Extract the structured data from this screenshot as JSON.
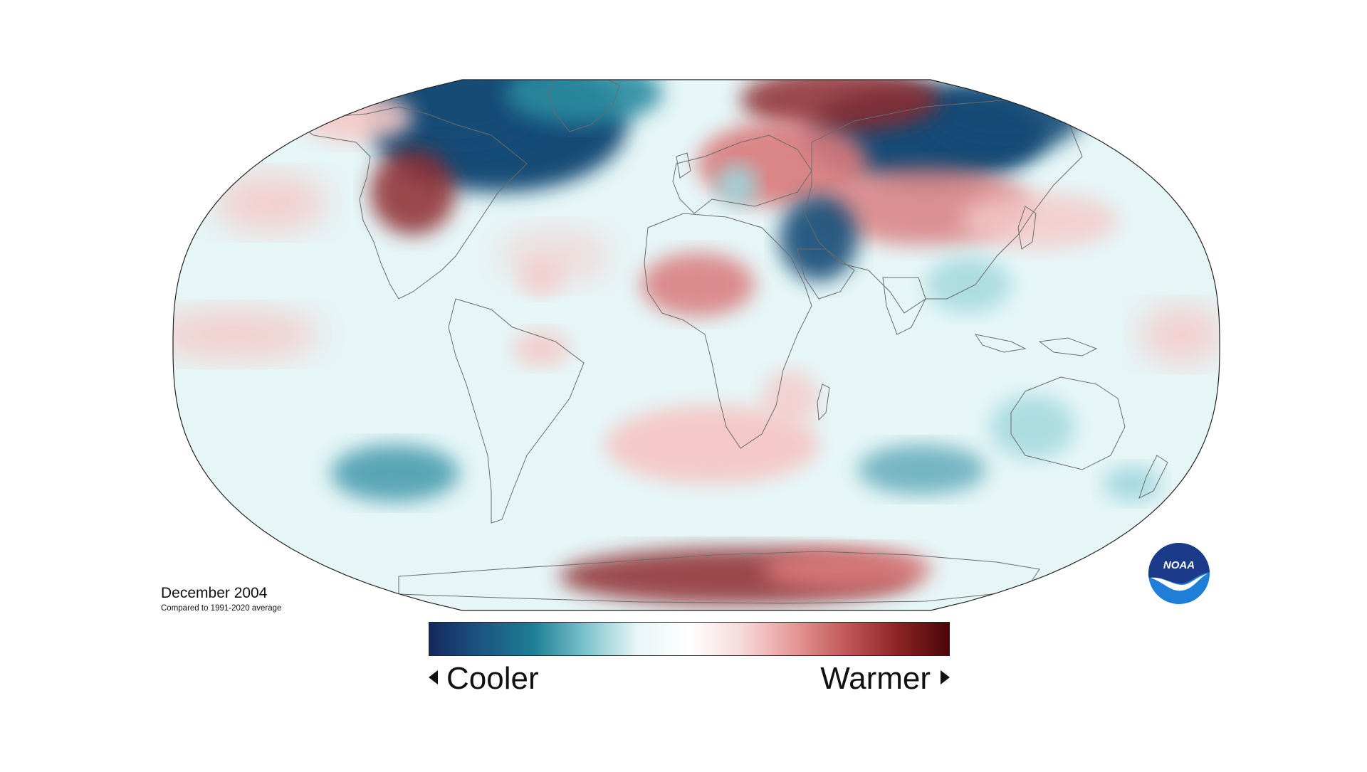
{
  "figure": {
    "period": "December 2004",
    "baseline": "Compared to 1991-2020 average"
  },
  "scale": {
    "cooler_label": "Cooler",
    "warmer_label": "Warmer",
    "colors": [
      "#14285e",
      "#1b5580",
      "#1d7e95",
      "#7cc3cc",
      "#e8f6f7",
      "#ffffff",
      "#f7dada",
      "#e69a98",
      "#c2585a",
      "#8d2426",
      "#4a0606"
    ]
  },
  "logo": {
    "text": "NOAA",
    "colors": {
      "top": "#1b3a8a",
      "bottom": "#1f7fd8",
      "bird": "#ffffff"
    }
  },
  "anomaly_palette": {
    "ocean_background": "#e6f6f7",
    "cool_strong": "#134b76",
    "cool_medium": "#2c8ba0",
    "cool_light": "#9fd6dc",
    "warm_light": "#f4c9c8",
    "warm_medium": "#d9797a",
    "warm_strong": "#8e2a2d",
    "coastline": "#6b6b6b",
    "map_border": "#222222"
  }
}
